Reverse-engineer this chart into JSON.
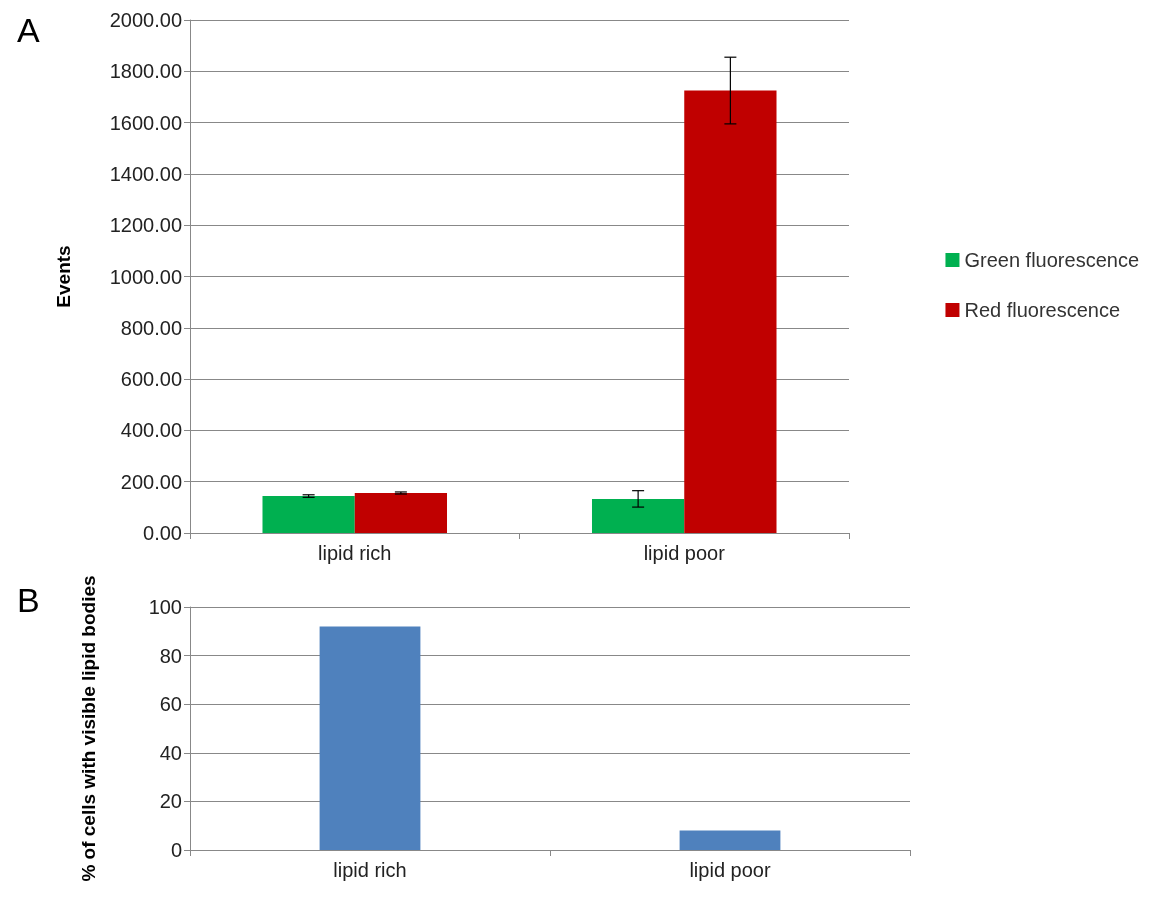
{
  "chart_data": [
    {
      "type": "bar",
      "title": "A",
      "ylabel": "Events",
      "categories": [
        "lipid rich",
        "lipid poor"
      ],
      "series": [
        {
          "name": "Green fluorescence",
          "color": "#00b050",
          "values": [
            144,
            133
          ],
          "errors": [
            5,
            32
          ]
        },
        {
          "name": "Red fluorescence",
          "color": "#c00000",
          "values": [
            156,
            1725
          ],
          "errors": [
            4,
            130
          ]
        }
      ],
      "ylim": [
        0,
        2000
      ],
      "yticks": [
        {
          "value": 0,
          "label": "0.00"
        },
        {
          "value": 200,
          "label": "200.00"
        },
        {
          "value": 400,
          "label": "400.00"
        },
        {
          "value": 600,
          "label": "600.00"
        },
        {
          "value": 800,
          "label": "800.00"
        },
        {
          "value": 1000,
          "label": "1000.00"
        },
        {
          "value": 1200,
          "label": "1200.00"
        },
        {
          "value": 1400,
          "label": "1400.00"
        },
        {
          "value": 1600,
          "label": "1600.00"
        },
        {
          "value": 1800,
          "label": "1800.00"
        },
        {
          "value": 2000,
          "label": "2000.00"
        }
      ],
      "grid": "y",
      "legend": "right"
    },
    {
      "type": "bar",
      "title": "B",
      "ylabel": "% of cells with visible lipid bodies",
      "categories": [
        "lipid rich",
        "lipid poor"
      ],
      "series": [
        {
          "color": "#4f81bd",
          "values": [
            92,
            8
          ]
        }
      ],
      "ylim": [
        0,
        100
      ],
      "yticks": [
        0,
        20,
        40,
        60,
        80,
        100
      ],
      "grid": "y"
    }
  ]
}
